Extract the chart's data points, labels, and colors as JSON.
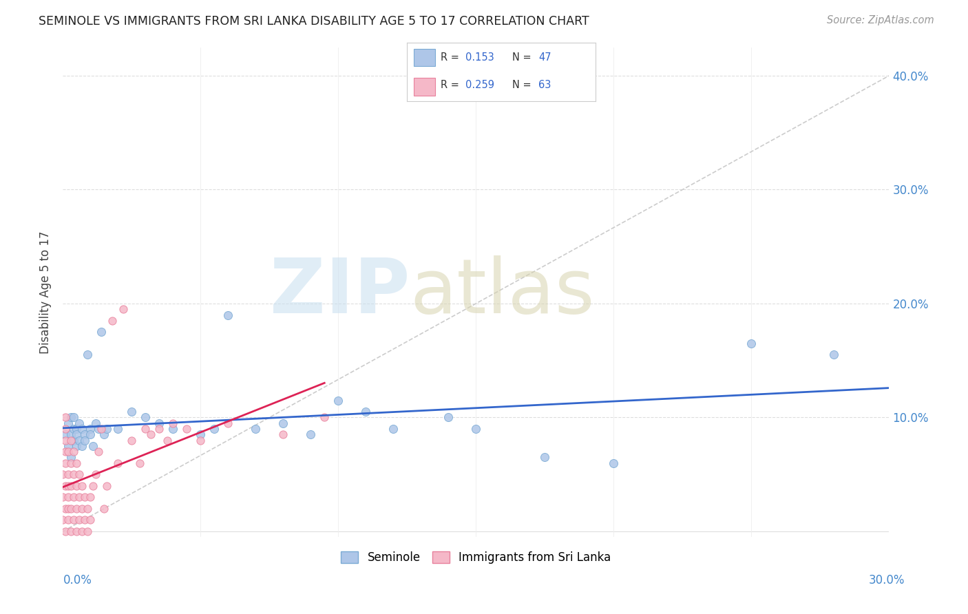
{
  "title": "SEMINOLE VS IMMIGRANTS FROM SRI LANKA DISABILITY AGE 5 TO 17 CORRELATION CHART",
  "source": "Source: ZipAtlas.com",
  "ylabel": "Disability Age 5 to 17",
  "xlim": [
    0.0,
    0.3
  ],
  "ylim": [
    -0.005,
    0.425
  ],
  "seminole_color": "#aec6e8",
  "seminole_edge": "#7aaad4",
  "immigrants_color": "#f5b8c8",
  "immigrants_edge": "#e8809c",
  "trendline_seminole": "#3366cc",
  "trendline_immigrants": "#dd2255",
  "diag_color": "#cccccc",
  "R_seminole": 0.153,
  "N_seminole": 47,
  "R_immigrants": 0.259,
  "N_immigrants": 63,
  "sem_x": [
    0.001,
    0.002,
    0.002,
    0.003,
    0.003,
    0.003,
    0.004,
    0.004,
    0.004,
    0.005,
    0.005,
    0.005,
    0.006,
    0.006,
    0.007,
    0.007,
    0.008,
    0.008,
    0.009,
    0.01,
    0.01,
    0.011,
    0.012,
    0.013,
    0.014,
    0.015,
    0.016,
    0.02,
    0.025,
    0.03,
    0.035,
    0.04,
    0.05,
    0.055,
    0.06,
    0.07,
    0.08,
    0.09,
    0.1,
    0.11,
    0.12,
    0.14,
    0.15,
    0.175,
    0.2,
    0.25,
    0.28
  ],
  "sem_y": [
    0.085,
    0.095,
    0.075,
    0.1,
    0.085,
    0.065,
    0.09,
    0.08,
    0.1,
    0.075,
    0.09,
    0.085,
    0.08,
    0.095,
    0.09,
    0.075,
    0.085,
    0.08,
    0.155,
    0.09,
    0.085,
    0.075,
    0.095,
    0.09,
    0.175,
    0.085,
    0.09,
    0.09,
    0.105,
    0.1,
    0.095,
    0.09,
    0.085,
    0.09,
    0.19,
    0.09,
    0.095,
    0.085,
    0.115,
    0.105,
    0.09,
    0.1,
    0.09,
    0.065,
    0.06,
    0.165,
    0.155
  ],
  "imm_x": [
    0.0,
    0.0,
    0.0,
    0.001,
    0.001,
    0.001,
    0.001,
    0.001,
    0.001,
    0.001,
    0.001,
    0.002,
    0.002,
    0.002,
    0.002,
    0.002,
    0.002,
    0.003,
    0.003,
    0.003,
    0.003,
    0.003,
    0.004,
    0.004,
    0.004,
    0.004,
    0.005,
    0.005,
    0.005,
    0.005,
    0.006,
    0.006,
    0.006,
    0.007,
    0.007,
    0.007,
    0.008,
    0.008,
    0.009,
    0.009,
    0.01,
    0.01,
    0.011,
    0.012,
    0.013,
    0.014,
    0.015,
    0.016,
    0.018,
    0.02,
    0.022,
    0.025,
    0.028,
    0.03,
    0.032,
    0.035,
    0.038,
    0.04,
    0.045,
    0.05,
    0.06,
    0.08,
    0.095
  ],
  "imm_y": [
    0.01,
    0.03,
    0.05,
    0.0,
    0.02,
    0.04,
    0.06,
    0.08,
    0.07,
    0.09,
    0.1,
    0.01,
    0.03,
    0.05,
    0.07,
    0.02,
    0.04,
    0.0,
    0.02,
    0.04,
    0.06,
    0.08,
    0.01,
    0.03,
    0.05,
    0.07,
    0.0,
    0.02,
    0.04,
    0.06,
    0.01,
    0.03,
    0.05,
    0.0,
    0.02,
    0.04,
    0.01,
    0.03,
    0.0,
    0.02,
    0.01,
    0.03,
    0.04,
    0.05,
    0.07,
    0.09,
    0.02,
    0.04,
    0.185,
    0.06,
    0.195,
    0.08,
    0.06,
    0.09,
    0.085,
    0.09,
    0.08,
    0.095,
    0.09,
    0.08,
    0.095,
    0.085,
    0.1
  ],
  "grid_color": "#e0e0e0",
  "grid_dashed_color": "#dddddd"
}
